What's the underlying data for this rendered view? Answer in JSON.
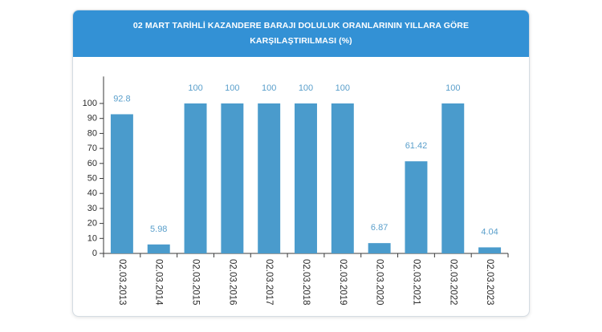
{
  "colors": {
    "header_bg": "#3391d5",
    "bar": "#4a9bcc",
    "data_label": "#5a9fcb",
    "axis": "#3a3a3a",
    "tick_label": "#2b2b2b"
  },
  "chart_data": {
    "type": "bar",
    "title_lines": [
      "02 MART TARİHLİ KAZANDERE BARAJI DOLULUK ORANLARININ YILLARA GÖRE",
      "KARŞILAŞTIRILMASI (%)"
    ],
    "categories": [
      "02.03.2013",
      "02.03.2014",
      "02.03.2015",
      "02.03.2016",
      "02.03.2017",
      "02.03.2018",
      "02.03.2019",
      "02.03.2020",
      "02.03.2021",
      "02.03.2022",
      "02.03.2023"
    ],
    "values": [
      92.8,
      5.98,
      100,
      100,
      100,
      100,
      100,
      6.87,
      61.42,
      100,
      4.04
    ],
    "yticks": [
      0,
      10,
      20,
      30,
      40,
      50,
      60,
      70,
      80,
      90,
      100
    ],
    "ylim": [
      0,
      118
    ],
    "grid": false,
    "legend": "none",
    "data_labels": "above-bars",
    "x_label_orientation": "vertical"
  }
}
